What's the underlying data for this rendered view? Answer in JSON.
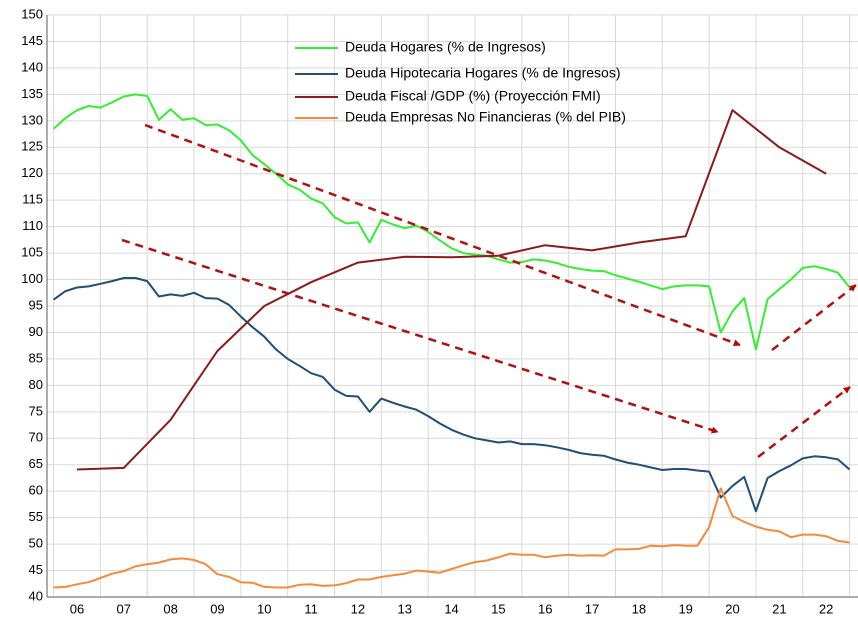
{
  "chart_data": {
    "type": "line",
    "x": [
      2006,
      2006.25,
      2006.5,
      2006.75,
      2007,
      2007.25,
      2007.5,
      2007.75,
      2008,
      2008.25,
      2008.5,
      2008.75,
      2009,
      2009.25,
      2009.5,
      2009.75,
      2010,
      2010.25,
      2010.5,
      2010.75,
      2011,
      2011.25,
      2011.5,
      2011.75,
      2012,
      2012.25,
      2012.5,
      2012.75,
      2013,
      2013.25,
      2013.5,
      2013.75,
      2014,
      2014.25,
      2014.5,
      2014.75,
      2015,
      2015.25,
      2015.5,
      2015.75,
      2016,
      2016.25,
      2016.5,
      2016.75,
      2017,
      2017.25,
      2017.5,
      2017.75,
      2018,
      2018.25,
      2018.5,
      2018.75,
      2019,
      2019.25,
      2019.5,
      2019.75,
      2020,
      2020.25,
      2020.5,
      2020.75,
      2021,
      2021.25,
      2021.5,
      2021.75,
      2022,
      2022.25,
      2022.5,
      2022.75,
      2023
    ],
    "series": [
      {
        "name": "Deuda Hogares (% de Ingresos)",
        "color": "#33ee33",
        "values": [
          128.5,
          130.5,
          132,
          132.8,
          132.5,
          133.5,
          134.6,
          135,
          134.7,
          130.2,
          132.2,
          130.2,
          130.5,
          129.2,
          129.3,
          128.2,
          126.3,
          123.5,
          121.8,
          120,
          118,
          117,
          115.3,
          114.4,
          111.8,
          110.6,
          110.8,
          107,
          111.3,
          110.4,
          109.7,
          110.2,
          109,
          107.4,
          105.9,
          105,
          104.7,
          104.5,
          103.8,
          103.2,
          103.3,
          103.8,
          103.6,
          103.1,
          102.4,
          102,
          101.7,
          101.6,
          100.8,
          100.2,
          99.6,
          98.9,
          98.2,
          98.7,
          98.9,
          98.9,
          98.7,
          90,
          94,
          96.5,
          86.8,
          96.3,
          98.2,
          100,
          102.2,
          102.5,
          102,
          101.3,
          98.5
        ]
      },
      {
        "name": "Deuda Hipotecaria  Hogares (% de Ingresos)",
        "color": "#1f4e79",
        "values": [
          96.2,
          97.8,
          98.5,
          98.7,
          99.2,
          99.7,
          100.3,
          100.3,
          99.7,
          96.8,
          97.2,
          96.9,
          97.5,
          96.5,
          96.4,
          95.2,
          93,
          91,
          89.2,
          86.8,
          85,
          83.7,
          82.3,
          81.6,
          79.2,
          78,
          77.9,
          75,
          77.5,
          76.7,
          76,
          75.4,
          74.2,
          72.8,
          71.6,
          70.7,
          70,
          69.6,
          69.2,
          69.4,
          68.9,
          68.9,
          68.7,
          68.3,
          67.8,
          67.2,
          66.9,
          66.7,
          66,
          65.4,
          65,
          64.5,
          64,
          64.2,
          64.2,
          63.9,
          63.7,
          58.8,
          61,
          62.7,
          56.2,
          62.5,
          63.8,
          64.9,
          66.2,
          66.6,
          66.4,
          66,
          64.1
        ]
      },
      {
        "name": "Deuda Fiscal /GDP (%) (Proyección FMI)",
        "color": "#8b1a1a",
        "x": [
          2006.5,
          2007.5,
          2008.5,
          2009.5,
          2010.5,
          2011.5,
          2012.5,
          2013.5,
          2014.5,
          2015.5,
          2016.5,
          2017.5,
          2018.5,
          2019.5,
          2020.5,
          2021.5,
          2022.5
        ],
        "values": [
          64.1,
          64.4,
          73.5,
          86.5,
          95,
          99.5,
          103.2,
          104.3,
          104.2,
          104.5,
          106.5,
          105.5,
          107,
          108.2,
          132,
          125,
          120
        ]
      },
      {
        "name": "Deuda Empresas No Financieras (% del PIB)",
        "color": "#f58a3a",
        "values": [
          41.8,
          41.9,
          42.4,
          42.8,
          43.6,
          44.4,
          44.9,
          45.8,
          46.2,
          46.5,
          47.1,
          47.3,
          47,
          46.2,
          44.3,
          43.8,
          42.8,
          42.7,
          41.9,
          41.8,
          41.8,
          42.3,
          42.4,
          42.1,
          42.2,
          42.6,
          43.3,
          43.3,
          43.8,
          44.1,
          44.4,
          45,
          44.8,
          44.6,
          45.3,
          46,
          46.6,
          46.9,
          47.5,
          48.2,
          48,
          48,
          47.5,
          47.8,
          48,
          47.8,
          47.9,
          47.8,
          49,
          49,
          49.1,
          49.7,
          49.6,
          49.8,
          49.7,
          49.7,
          53.2,
          60.5,
          55.3,
          54.2,
          53.3,
          52.7,
          52.4,
          51.3,
          51.8,
          51.8,
          51.5,
          50.6,
          50.3
        ]
      }
    ],
    "xlim": [
      2005.86,
      2023.18
    ],
    "xticks": [
      {
        "value": 2006.5,
        "label": "06"
      },
      {
        "value": 2007.5,
        "label": "07"
      },
      {
        "value": 2008.5,
        "label": "08"
      },
      {
        "value": 2009.5,
        "label": "09"
      },
      {
        "value": 2010.5,
        "label": "10"
      },
      {
        "value": 2011.5,
        "label": "11"
      },
      {
        "value": 2012.5,
        "label": "12"
      },
      {
        "value": 2013.5,
        "label": "13"
      },
      {
        "value": 2014.5,
        "label": "14"
      },
      {
        "value": 2015.5,
        "label": "15"
      },
      {
        "value": 2016.5,
        "label": "16"
      },
      {
        "value": 2017.5,
        "label": "17"
      },
      {
        "value": 2018.5,
        "label": "18"
      },
      {
        "value": 2019.5,
        "label": "19"
      },
      {
        "value": 2020.5,
        "label": "20"
      },
      {
        "value": 2021.5,
        "label": "21"
      },
      {
        "value": 2022.5,
        "label": "22"
      }
    ],
    "ylim": [
      40,
      150
    ],
    "yticks": [
      40,
      45,
      50,
      55,
      60,
      65,
      70,
      75,
      80,
      85,
      90,
      95,
      100,
      105,
      110,
      115,
      120,
      125,
      130,
      135,
      140,
      145,
      150
    ],
    "grid": true,
    "legend": "upper center"
  }
}
